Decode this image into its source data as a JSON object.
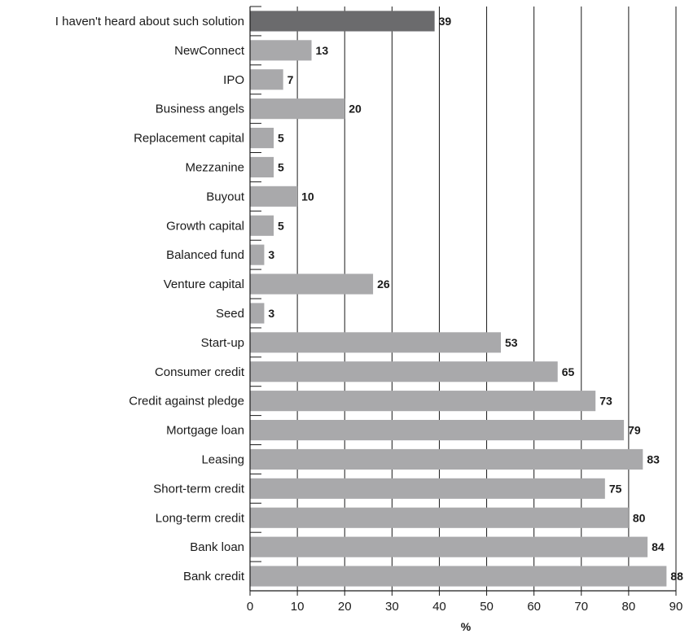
{
  "chart_data": {
    "type": "bar",
    "orientation": "horizontal",
    "categories": [
      "I haven't heard about such solution",
      "NewConnect",
      "IPO",
      "Business angels",
      "Replacement capital",
      "Mezzanine",
      "Buyout",
      "Growth capital",
      "Balanced fund",
      "Venture capital",
      "Seed",
      "Start-up",
      "Consumer credit",
      "Credit against pledge",
      "Mortgage loan",
      "Leasing",
      "Short-term credit",
      "Long-term credit",
      "Bank loan",
      "Bank credit"
    ],
    "values": [
      39,
      13,
      7,
      20,
      5,
      5,
      10,
      5,
      3,
      26,
      3,
      53,
      65,
      73,
      79,
      83,
      75,
      80,
      84,
      88
    ],
    "data_labels": [
      "39",
      "13",
      "7",
      "20",
      "5",
      "5",
      "10",
      "5",
      "3",
      "26",
      "3",
      "53",
      "65",
      "73",
      "79",
      "83",
      "75",
      "80",
      "84",
      "88"
    ],
    "highlight_index": 0,
    "xlim": [
      0,
      90
    ],
    "xticks": [
      0,
      10,
      20,
      30,
      40,
      50,
      60,
      70,
      80,
      90
    ],
    "xlabel": "%",
    "grid": "vertical",
    "colors": {
      "highlight": "#6b6b6d",
      "bar": "#a9a9ab",
      "grid": "#1a1a1a",
      "text": "#1a1a1a"
    }
  }
}
